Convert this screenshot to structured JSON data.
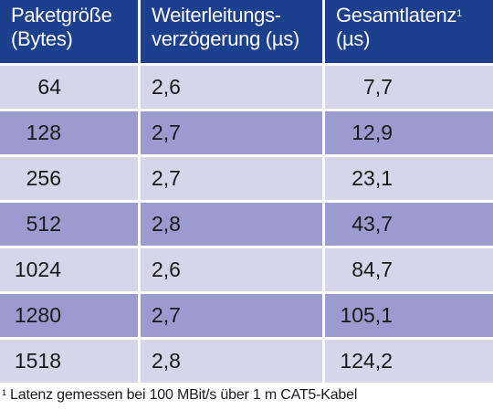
{
  "table": {
    "header": {
      "col1": {
        "line1": "Paketgröße",
        "line2": "(Bytes)"
      },
      "col2": {
        "line1": "Weiterleitungs-",
        "line2": "verzögerung (µs)"
      },
      "col3": {
        "line1": "Gesamtlatenz",
        "footnote_mark": "1",
        "line2": "(µs)"
      }
    },
    "rows": [
      {
        "size": "64",
        "forwarding": "2,6",
        "total": "7,7"
      },
      {
        "size": "128",
        "forwarding": "2,7",
        "total": "12,9"
      },
      {
        "size": "256",
        "forwarding": "2,7",
        "total": "23,1"
      },
      {
        "size": "512",
        "forwarding": "2,8",
        "total": "43,7"
      },
      {
        "size": "1024",
        "forwarding": "2,6",
        "total": "84,7"
      },
      {
        "size": "1280",
        "forwarding": "2,7",
        "total": "105,1"
      },
      {
        "size": "1518",
        "forwarding": "2,8",
        "total": "124,2"
      }
    ]
  },
  "footnote": {
    "mark": "1",
    "text": " Latenz gemessen bei 100 MBit/s über 1 m CAT5-Kabel"
  },
  "colors": {
    "header_bg": "#1c3f8e",
    "row_light": "#d6d5ea",
    "row_dark": "#9c9bcf"
  }
}
